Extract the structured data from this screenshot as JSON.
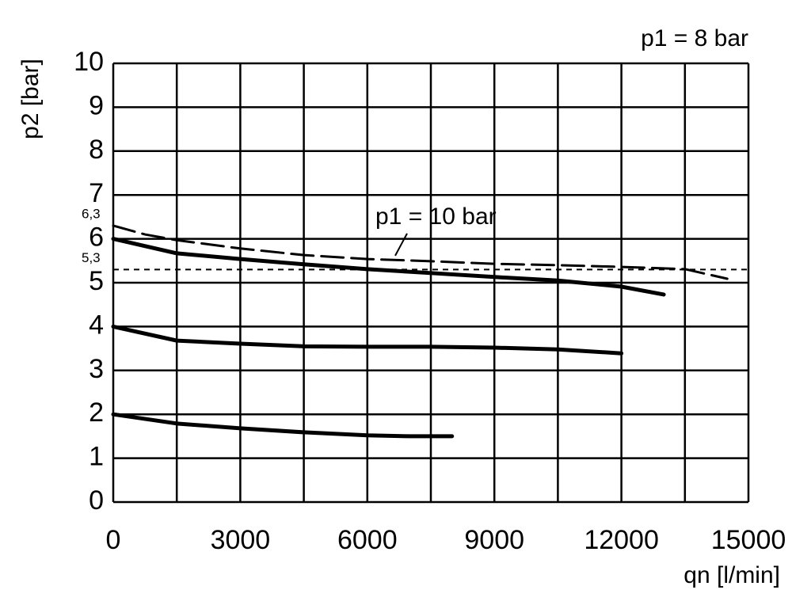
{
  "chart_data": {
    "type": "line",
    "xlabel": "qn [l/min]",
    "ylabel": "p2 [bar]",
    "annotation": "p1 = 8 bar",
    "xlim": [
      0,
      15000
    ],
    "ylim": [
      0,
      10
    ],
    "xticks": [
      0,
      3000,
      6000,
      9000,
      12000,
      15000
    ],
    "xminorticks": [
      1500,
      4500,
      7500,
      10500,
      13500
    ],
    "yticks": [
      0,
      1,
      2,
      3,
      4,
      5,
      6,
      7,
      8,
      9,
      10
    ],
    "grid": true,
    "ref_lines": [
      {
        "value": 6.3,
        "label": "6,3"
      },
      {
        "value": 5.3,
        "label": "5,3"
      }
    ],
    "series": [
      {
        "color": "#000000",
        "style": "solid",
        "x": [
          0,
          1500,
          3000,
          4500,
          6000,
          7500,
          9000,
          10500,
          12000,
          13000
        ],
        "values": [
          6.0,
          5.67,
          5.54,
          5.42,
          5.31,
          5.22,
          5.13,
          5.05,
          4.91,
          4.73
        ]
      },
      {
        "color": "#000000",
        "style": "solid",
        "x": [
          0,
          1500,
          3000,
          4500,
          6000,
          7500,
          9000,
          10500,
          12000
        ],
        "values": [
          4.0,
          3.68,
          3.61,
          3.55,
          3.54,
          3.54,
          3.52,
          3.48,
          3.39
        ]
      },
      {
        "color": "#000000",
        "style": "solid",
        "x": [
          0,
          1500,
          3000,
          4500,
          6000,
          7000,
          8000
        ],
        "values": [
          2.0,
          1.79,
          1.68,
          1.59,
          1.52,
          1.5,
          1.5
        ]
      },
      {
        "name": "p1 = 10 bar",
        "color": "#000000",
        "style": "dashed",
        "x": [
          0,
          750,
          1500,
          3000,
          4500,
          6000,
          7500,
          9000,
          10500,
          12000,
          13500,
          14500
        ],
        "values": [
          6.3,
          6.1,
          5.97,
          5.78,
          5.63,
          5.54,
          5.49,
          5.43,
          5.4,
          5.36,
          5.31,
          5.09
        ]
      }
    ]
  }
}
